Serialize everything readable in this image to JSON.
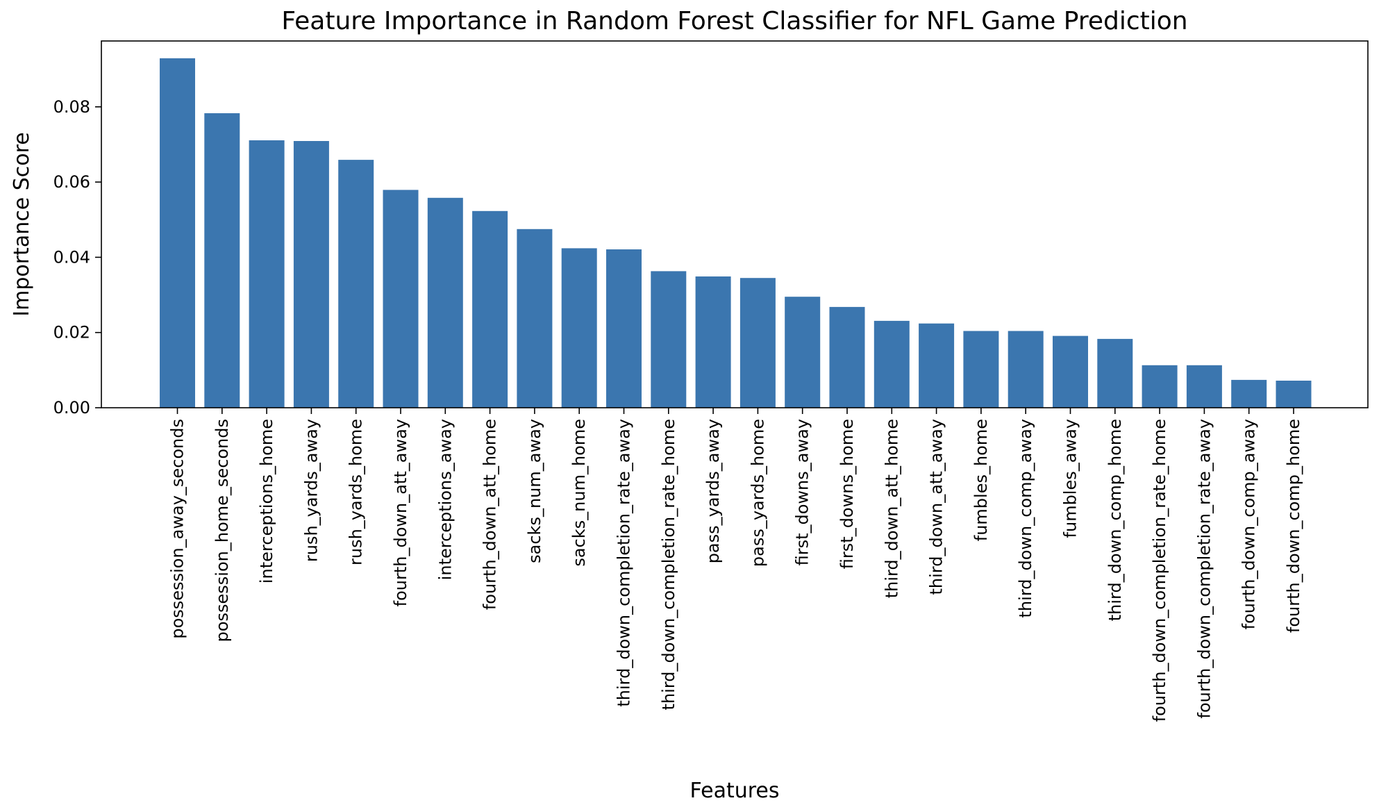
{
  "chart_data": {
    "type": "bar",
    "title": "Feature Importance in Random Forest Classifier for NFL Game Prediction",
    "xlabel": "Features",
    "ylabel": "Importance Score",
    "ylim": [
      0,
      0.0975
    ],
    "yticks": [
      "0.00",
      "0.02",
      "0.04",
      "0.06",
      "0.08"
    ],
    "ytick_values": [
      0,
      0.02,
      0.04,
      0.06,
      0.08
    ],
    "grid": false,
    "legend": "none",
    "bar_color": "#3b76af",
    "categories": [
      "possession_away_seconds",
      "possession_home_seconds",
      "interceptions_home",
      "rush_yards_away",
      "rush_yards_home",
      "fourth_down_att_away",
      "interceptions_away",
      "fourth_down_att_home",
      "sacks_num_away",
      "sacks_num_home",
      "third_down_completion_rate_away",
      "third_down_completion_rate_home",
      "pass_yards_away",
      "pass_yards_home",
      "first_downs_away",
      "first_downs_home",
      "third_down_att_home",
      "third_down_att_away",
      "fumbles_home",
      "third_down_comp_away",
      "fumbles_away",
      "third_down_comp_home",
      "fourth_down_completion_rate_home",
      "fourth_down_completion_rate_away",
      "fourth_down_comp_away",
      "fourth_down_comp_home"
    ],
    "values": [
      0.0929,
      0.0783,
      0.0711,
      0.0709,
      0.0659,
      0.0579,
      0.0558,
      0.0523,
      0.0475,
      0.0424,
      0.0421,
      0.0363,
      0.0349,
      0.0345,
      0.0295,
      0.0268,
      0.0231,
      0.0224,
      0.0204,
      0.0204,
      0.0191,
      0.0183,
      0.0113,
      0.0113,
      0.0074,
      0.0072
    ]
  }
}
